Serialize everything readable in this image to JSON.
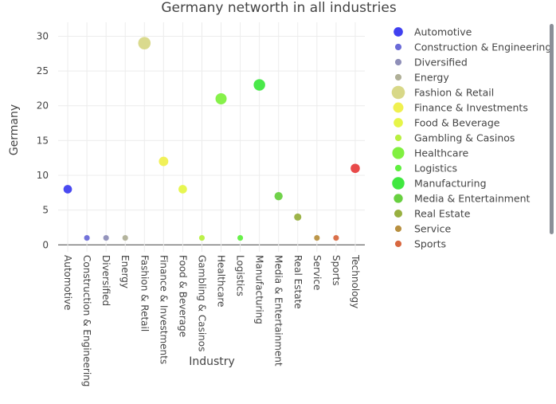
{
  "chart_data": {
    "type": "scatter",
    "title": "Germany networth in all industries",
    "xlabel": "Industry",
    "ylabel": "Germany",
    "ylim": [
      -1,
      32
    ],
    "yticks": [
      0,
      5,
      10,
      15,
      20,
      25,
      30
    ],
    "grid": true,
    "legend_position": "right",
    "categories": [
      "Automotive",
      "Construction & Engineering",
      "Diversified",
      "Energy",
      "Fashion & Retail",
      "Finance & Investments",
      "Food & Beverage",
      "Gambling & Casinos",
      "Healthcare",
      "Logistics",
      "Manufacturing",
      "Media & Entertainment",
      "Real Estate",
      "Service",
      "Sports",
      "Technology"
    ],
    "series": [
      {
        "name": "Automotive",
        "x": "Automotive",
        "y": 8,
        "color": "#4040f0"
      },
      {
        "name": "Construction & Engineering",
        "x": "Construction & Engineering",
        "y": 1,
        "color": "#6b6bd8"
      },
      {
        "name": "Diversified",
        "x": "Diversified",
        "y": 1,
        "color": "#8f8fb8"
      },
      {
        "name": "Energy",
        "x": "Energy",
        "y": 1,
        "color": "#b0b098"
      },
      {
        "name": "Fashion & Retail",
        "x": "Fashion & Retail",
        "y": 29,
        "color": "#d8d888"
      },
      {
        "name": "Finance & Investments",
        "x": "Finance & Investments",
        "y": 12,
        "color": "#f0f050"
      },
      {
        "name": "Food & Beverage",
        "x": "Food & Beverage",
        "y": 8,
        "color": "#e6f548"
      },
      {
        "name": "Gambling & Casinos",
        "x": "Gambling & Casinos",
        "y": 1,
        "color": "#b8f040"
      },
      {
        "name": "Healthcare",
        "x": "Healthcare",
        "y": 21,
        "color": "#80f040"
      },
      {
        "name": "Logistics",
        "x": "Logistics",
        "y": 1,
        "color": "#60f040"
      },
      {
        "name": "Manufacturing",
        "x": "Manufacturing",
        "y": 23,
        "color": "#40e840"
      },
      {
        "name": "Media & Entertainment",
        "x": "Media & Entertainment",
        "y": 7,
        "color": "#68d040"
      },
      {
        "name": "Real Estate",
        "x": "Real Estate",
        "y": 4,
        "color": "#98b040"
      },
      {
        "name": "Service",
        "x": "Service",
        "y": 1,
        "color": "#b89040"
      },
      {
        "name": "Sports",
        "x": "Sports",
        "y": 1,
        "color": "#d86840"
      },
      {
        "name": "Technology",
        "x": "Technology",
        "y": 11,
        "color": "#e84040"
      }
    ],
    "legend_visible_count": 15
  }
}
